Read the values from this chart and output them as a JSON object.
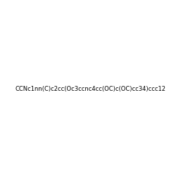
{
  "smiles": "CCNc1nn(C)c2cc(Oc3ccnc4cc(OC)c(OC)cc34)ccc12",
  "title": "",
  "img_size": [
    250,
    250
  ],
  "background_color": "#ffffff"
}
